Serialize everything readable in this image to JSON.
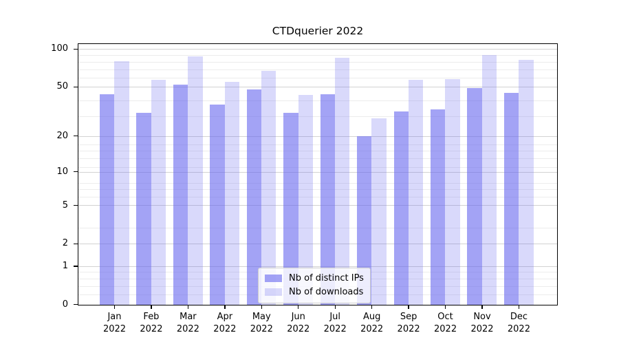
{
  "chart_data": {
    "type": "bar",
    "title": "CTDquerier 2022",
    "categories": [
      "Jan",
      "Feb",
      "Mar",
      "Apr",
      "May",
      "Jun",
      "Jul",
      "Aug",
      "Sep",
      "Oct",
      "Nov",
      "Dec"
    ],
    "year_label": "2022",
    "series": [
      {
        "name": "Nb of distinct IPs",
        "color": "rgba(102,102,238,0.6)",
        "values": [
          44,
          31,
          52,
          36,
          48,
          31,
          44,
          20,
          32,
          33,
          49,
          45
        ]
      },
      {
        "name": "Nb of downloads",
        "color": "rgba(102,102,238,0.25)",
        "values": [
          80,
          57,
          88,
          55,
          67,
          43,
          86,
          28,
          57,
          58,
          90,
          82
        ]
      }
    ],
    "ylabel": "",
    "xlabel": "",
    "yscale": "log1p",
    "ylim": [
      0,
      110
    ],
    "yticks": [
      0,
      1,
      2,
      5,
      10,
      20,
      50,
      100
    ],
    "minor_gridlines_v_plus_1": [
      1.2,
      1.4,
      1.6,
      1.8,
      3,
      4,
      6,
      7,
      8,
      9,
      12,
      14,
      16,
      18,
      30,
      40,
      60,
      70,
      80,
      90
    ],
    "grid": true,
    "legend_position": "lower center",
    "colors": {
      "bar_distinct_ips_rendered": "#a5a5f2",
      "bar_downloads_rendered": "#dadaf9",
      "grid_major": "#d2d2d2",
      "grid_minor": "#ececec",
      "axis": "#000000"
    }
  }
}
